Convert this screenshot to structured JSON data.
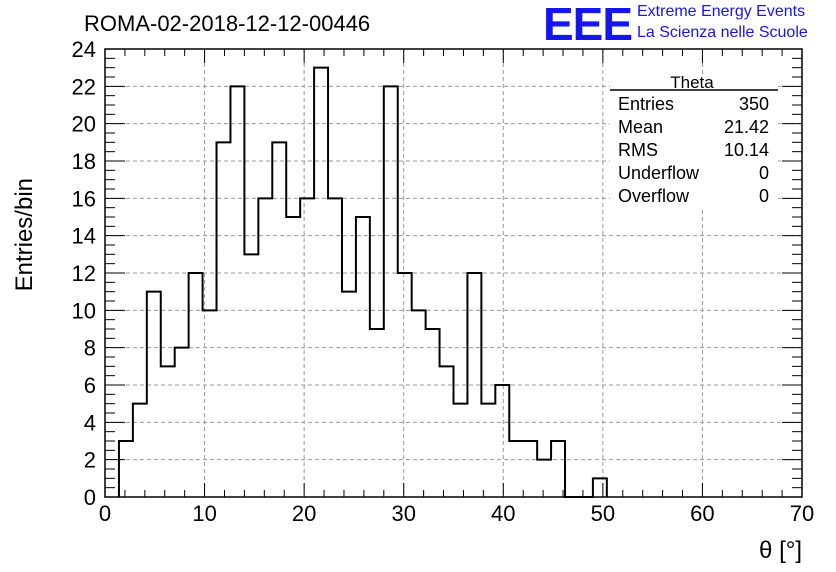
{
  "header": {
    "title": "ROMA-02-2018-12-12-00446",
    "logo_text": "EEE",
    "logo_line1": "Extreme Energy Events",
    "logo_line2": "La Scienza nelle Scuole"
  },
  "colors": {
    "logo": "#1515f0",
    "grid": "#9a9a9a",
    "line": "#000000"
  },
  "stats": {
    "name": "Theta",
    "rows": [
      {
        "label": "Entries",
        "value": "350"
      },
      {
        "label": "Mean",
        "value": "21.42"
      },
      {
        "label": "RMS",
        "value": "10.14"
      },
      {
        "label": "Underflow",
        "value": "0"
      },
      {
        "label": "Overflow",
        "value": "0"
      }
    ]
  },
  "chart_data": {
    "type": "histogram",
    "xlabel": "θ [°]",
    "ylabel": "Entries/bin",
    "xlim": [
      0,
      70
    ],
    "ylim": [
      0,
      24
    ],
    "grid": true,
    "bin_width": 1.4,
    "x_start": 0,
    "xticks": [
      "0",
      "10",
      "20",
      "30",
      "40",
      "50",
      "60",
      "70"
    ],
    "yticks": [
      "0",
      "2",
      "4",
      "6",
      "8",
      "10",
      "12",
      "14",
      "16",
      "18",
      "20",
      "22",
      "24"
    ],
    "values": [
      0,
      3,
      5,
      11,
      7,
      8,
      12,
      10,
      19,
      22,
      13,
      16,
      19,
      15,
      16,
      23,
      16,
      11,
      15,
      9,
      22,
      12,
      10,
      9,
      7,
      5,
      12,
      5,
      6,
      3,
      3,
      2,
      3,
      0,
      0,
      1,
      0,
      0,
      0,
      0,
      0,
      0,
      0,
      0,
      0,
      0,
      0,
      0,
      0,
      0
    ]
  }
}
